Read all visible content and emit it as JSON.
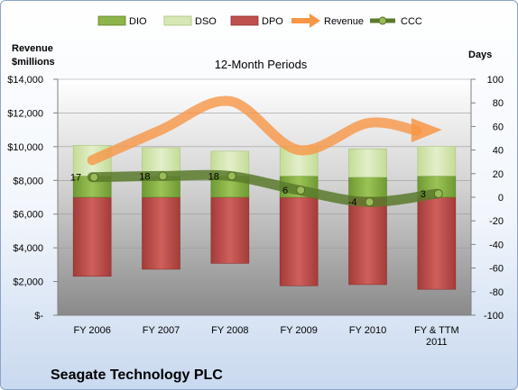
{
  "chart_data": {
    "type": "bar",
    "title": "12-Month Periods",
    "footer": "Seagate Technology PLC",
    "y_left_label": [
      "Revenue",
      "$millions"
    ],
    "y_right_label": "Days",
    "ylim_left": [
      0,
      14000
    ],
    "ylim_right": [
      -100,
      100
    ],
    "y_left_ticks": [
      "$-",
      "$2,000",
      "$4,000",
      "$6,000",
      "$8,000",
      "$10,000",
      "$12,000",
      "$14,000"
    ],
    "y_right_ticks": [
      "-100",
      "-80",
      "-60",
      "-40",
      "-20",
      "0",
      "20",
      "40",
      "60",
      "80",
      "100"
    ],
    "categories": [
      [
        "FY 2006"
      ],
      [
        "FY 2007"
      ],
      [
        "FY 2008"
      ],
      [
        "FY 2009"
      ],
      [
        "FY 2010"
      ],
      [
        "FY & TTM",
        "2011"
      ]
    ],
    "grid": true,
    "legend_position": "top",
    "series": [
      {
        "name": "DIO",
        "kind": "stacked-bar",
        "axis": "right",
        "color": "#8db54a",
        "values": [
          18,
          18,
          18,
          18,
          17,
          18
        ]
      },
      {
        "name": "DSO",
        "kind": "stacked-bar",
        "axis": "right",
        "color": "#d7e8b6",
        "values": [
          26,
          24,
          21,
          25,
          24,
          25
        ]
      },
      {
        "name": "DPO",
        "kind": "bar-below-zero",
        "axis": "right",
        "color": "#c0504d",
        "values": [
          -67,
          -61,
          -56,
          -75,
          -74,
          -78
        ]
      },
      {
        "name": "Revenue",
        "kind": "arrow-line",
        "axis": "left",
        "color": "#f79646",
        "values": [
          9200,
          11000,
          12700,
          9800,
          11400,
          11000
        ]
      },
      {
        "name": "CCC",
        "kind": "line",
        "axis": "right",
        "color": "#5a7a2b",
        "values": [
          17,
          18,
          18,
          6,
          -4,
          3
        ],
        "labels": [
          "17",
          "18",
          "18",
          "6",
          "-4",
          "3"
        ]
      }
    ]
  }
}
